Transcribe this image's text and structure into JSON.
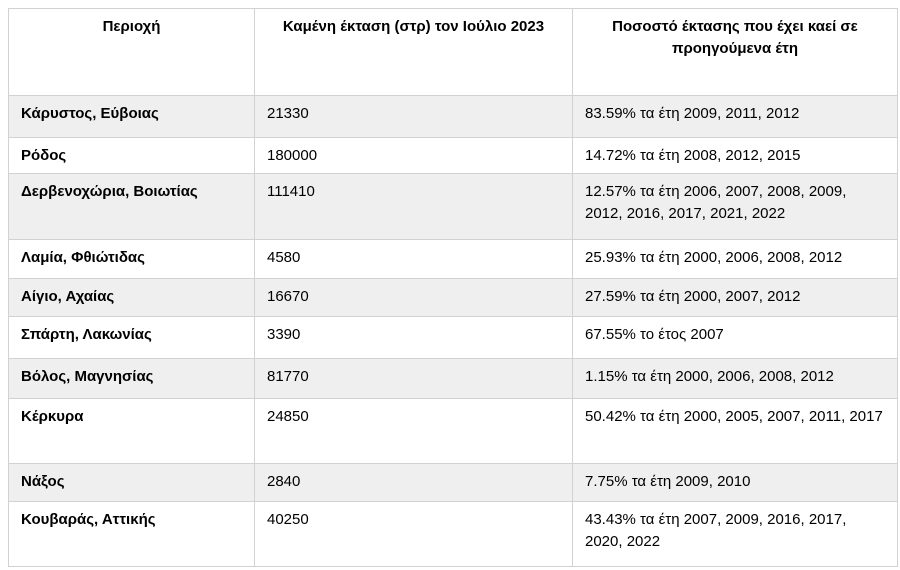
{
  "table": {
    "headers": {
      "region": "Περιοχή",
      "burned_area": "Καμένη έκταση (στρ) τον Ιούλιο 2023",
      "previous_years": "Ποσοστό έκτασης που έχει καεί σε προηγούμενα έτη"
    },
    "rows": [
      {
        "region": "Κάρυστος, Εύβοιας",
        "burned_area": "21330",
        "previous_years": "83.59% τα έτη 2009, 2011, 2012"
      },
      {
        "region": "Ρόδος",
        "burned_area": "180000",
        "previous_years": "14.72% τα έτη 2008, 2012, 2015"
      },
      {
        "region": "Δερβενοχώρια, Βοιωτίας",
        "burned_area": "111410",
        "previous_years": "12.57% τα έτη 2006, 2007, 2008, 2009, 2012, 2016, 2017, 2021, 2022"
      },
      {
        "region": "Λαμία, Φθιώτιδας",
        "burned_area": "4580",
        "previous_years": "25.93% τα έτη 2000, 2006, 2008, 2012"
      },
      {
        "region": "Αίγιο, Αχαίας",
        "burned_area": "16670",
        "previous_years": "27.59% τα έτη 2000, 2007, 2012"
      },
      {
        "region": "Σπάρτη, Λακωνίας",
        "burned_area": "3390",
        "previous_years": "67.55% το έτος 2007"
      },
      {
        "region": "Βόλος, Μαγνησίας",
        "burned_area": "81770",
        "previous_years": "1.15% τα έτη 2000, 2006, 2008, 2012"
      },
      {
        "region": "Κέρκυρα",
        "burned_area": "24850",
        "previous_years": "50.42% τα έτη 2000, 2005, 2007, 2011, 2017"
      },
      {
        "region": "Νάξος",
        "burned_area": "2840",
        "previous_years": "7.75% τα έτη 2009, 2010"
      },
      {
        "region": "Κουβαράς, Αττικής",
        "burned_area": "40250",
        "previous_years": "43.43% τα έτη 2007, 2009, 2016, 2017, 2020, 2022"
      }
    ],
    "colors": {
      "row_shade": "#efefef",
      "border": "#d2d2d2",
      "text": "#000000",
      "background": "#ffffff"
    }
  }
}
